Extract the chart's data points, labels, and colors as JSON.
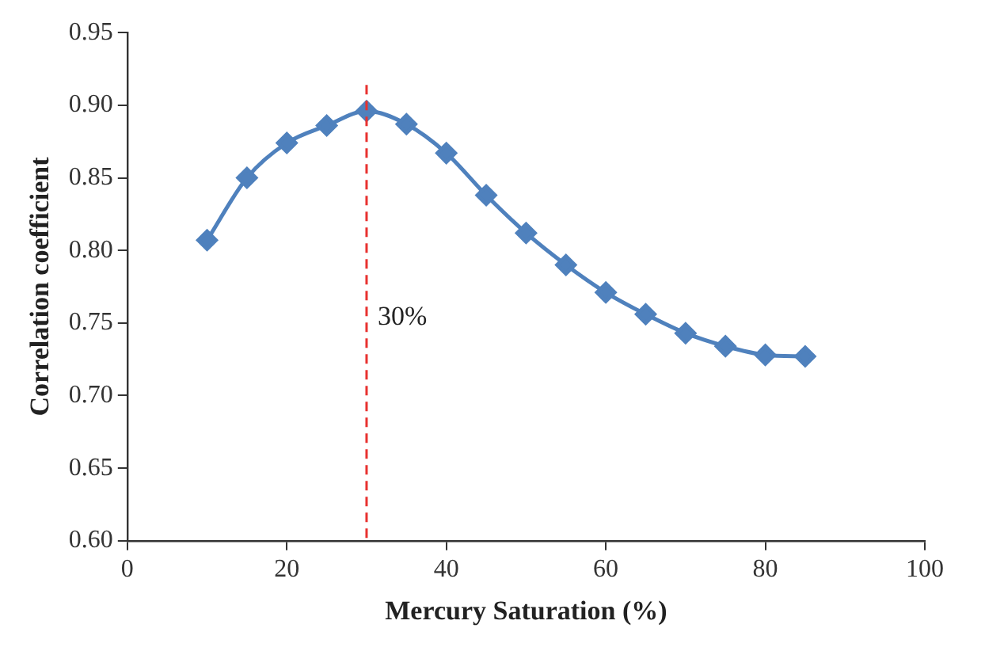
{
  "chart_data": {
    "type": "line",
    "xlabel": "Mercury Saturation (%)",
    "ylabel": "Correlation coefficient",
    "x": [
      10,
      15,
      20,
      25,
      30,
      35,
      40,
      45,
      50,
      55,
      60,
      65,
      70,
      75,
      80,
      85
    ],
    "series": [
      {
        "color": "#4f81bd",
        "values": [
          0.807,
          0.85,
          0.874,
          0.886,
          0.896,
          0.887,
          0.867,
          0.838,
          0.812,
          0.79,
          0.771,
          0.756,
          0.743,
          0.734,
          0.728,
          0.727
        ]
      }
    ],
    "xlim": [
      0,
      100
    ],
    "xticks": [
      0,
      20,
      40,
      60,
      80,
      100
    ],
    "ylim": [
      0.6,
      0.95
    ],
    "yticks": [
      {
        "value": 0.6,
        "label": "0.60"
      },
      {
        "value": 0.65,
        "label": "0.65"
      },
      {
        "value": 0.7,
        "label": "0.70"
      },
      {
        "value": 0.75,
        "label": "0.75"
      },
      {
        "value": 0.8,
        "label": "0.80"
      },
      {
        "value": 0.85,
        "label": "0.85"
      },
      {
        "value": 0.9,
        "label": "0.90"
      },
      {
        "value": 0.95,
        "label": "0.95"
      }
    ],
    "ref_lines": [
      {
        "axis": "x",
        "value": 30,
        "label": "30%",
        "color": "#e8312f",
        "line_style": "dashed"
      }
    ],
    "marker": "diamond",
    "line_style": "solid",
    "grid": false,
    "legend": false
  }
}
